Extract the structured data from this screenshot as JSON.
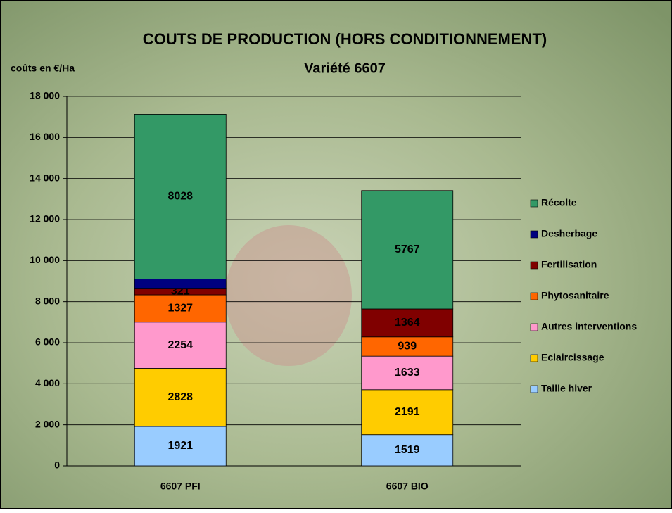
{
  "chart_data": {
    "type": "stacked_bar",
    "title": "COUTS DE PRODUCTION (HORS CONDITIONNEMENT)",
    "subtitle": "Variété 6607",
    "y_label": "coûts en €/Ha",
    "categories": [
      "6607 PFI",
      "6607 BIO"
    ],
    "series": [
      {
        "name": "Taille hiver",
        "color": "#99ccff",
        "values": [
          1921,
          1519
        ]
      },
      {
        "name": "Eclaircissage",
        "color": "#ffcc00",
        "values": [
          2828,
          2191
        ]
      },
      {
        "name": "Autres interventions",
        "color": "#ff99cc",
        "values": [
          2254,
          1633
        ]
      },
      {
        "name": "Phytosanitaire",
        "color": "#ff6600",
        "values": [
          1327,
          939
        ]
      },
      {
        "name": "Fertilisation",
        "color": "#800000",
        "values": [
          321,
          1364
        ]
      },
      {
        "name": "Desherbage",
        "color": "#000080",
        "values": [
          450,
          0
        ],
        "data_labels": false
      },
      {
        "name": "Récolte",
        "color": "#339966",
        "values": [
          8028,
          5767
        ]
      }
    ],
    "ylim": [
      0,
      18000
    ],
    "yticks": [
      0,
      {
        "value": 2000,
        "label": "2 000"
      },
      {
        "value": 4000,
        "label": "4 000"
      },
      {
        "value": 6000,
        "label": "6 000"
      },
      {
        "value": 8000,
        "label": "8 000"
      },
      {
        "value": 10000,
        "label": "10 000"
      },
      {
        "value": 12000,
        "label": "12 000"
      },
      {
        "value": 14000,
        "label": "14 000"
      },
      {
        "value": 16000,
        "label": "16 000"
      },
      {
        "value": 18000,
        "label": "18 000"
      }
    ],
    "grid": true,
    "legend": "right"
  }
}
